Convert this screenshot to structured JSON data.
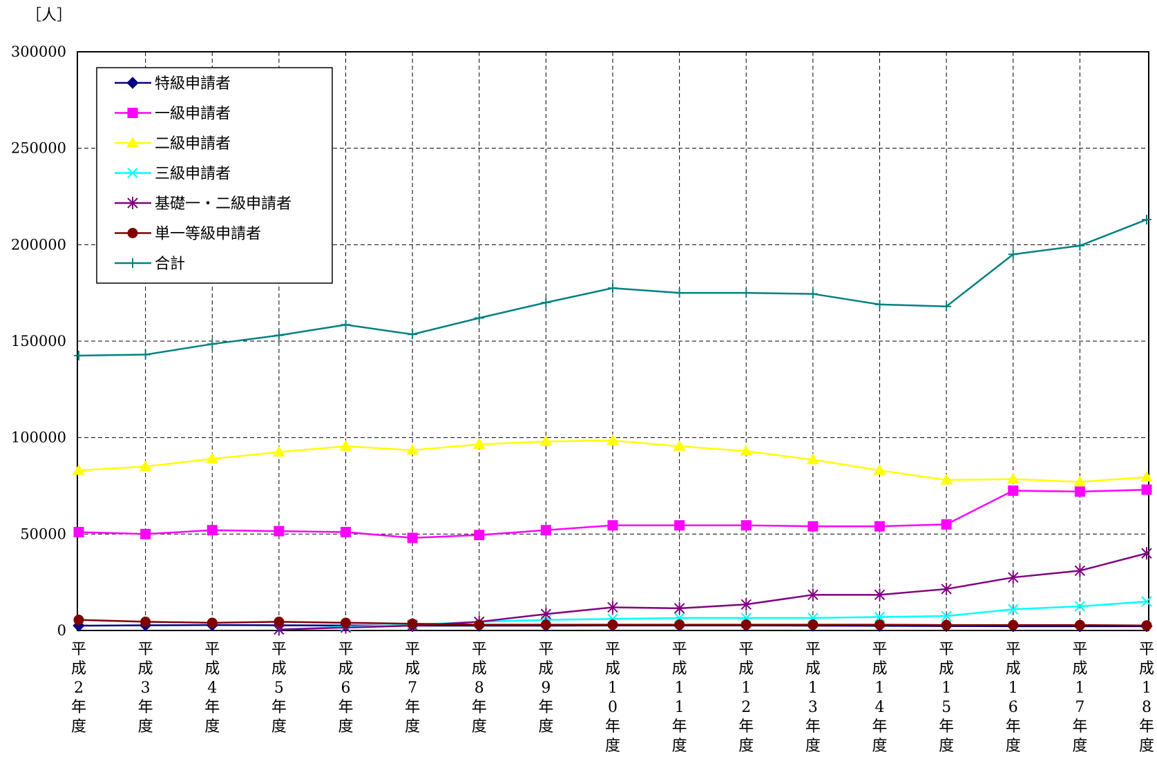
{
  "chart_data": {
    "type": "line",
    "unit_label": "［人］",
    "ylim": [
      0,
      300000
    ],
    "yticks": [
      "300000",
      "250000",
      "200000",
      "150000",
      "100000",
      "50000",
      "0"
    ],
    "ytick_values": [
      300000,
      250000,
      200000,
      150000,
      100000,
      50000,
      0
    ],
    "grid": true,
    "legend_position": "top-left",
    "categories": [
      "平成2年度",
      "平成3年度",
      "平成4年度",
      "平成5年度",
      "平成6年度",
      "平成7年度",
      "平成8年度",
      "平成9年度",
      "平成10年度",
      "平成11年度",
      "平成12年度",
      "平成13年度",
      "平成14年度",
      "平成15年度",
      "平成16年度",
      "平成17年度",
      "平成18年度"
    ],
    "series": [
      {
        "name": "特級申請者",
        "color": "#000080",
        "marker": "diamond",
        "values": [
          2500,
          2700,
          2800,
          2700,
          2600,
          2500,
          2500,
          2500,
          2600,
          2600,
          2600,
          2500,
          2400,
          2300,
          2200,
          2200,
          2200
        ]
      },
      {
        "name": "一級申請者",
        "color": "#FF00FF",
        "marker": "square",
        "values": [
          51000,
          50000,
          52000,
          51500,
          51000,
          48000,
          49500,
          52000,
          54500,
          54500,
          54500,
          54000,
          54000,
          55000,
          72500,
          72000,
          73000
        ]
      },
      {
        "name": "二級申請者",
        "color": "#FFFF00",
        "marker": "triangle",
        "values": [
          83000,
          85000,
          89000,
          92500,
          95500,
          93500,
          96500,
          98000,
          98500,
          95500,
          93000,
          88500,
          83000,
          78000,
          78500,
          77000,
          79500
        ]
      },
      {
        "name": "三級申請者",
        "color": "#00FFFF",
        "marker": "x",
        "values": [
          null,
          null,
          null,
          500,
          2000,
          3000,
          4500,
          5500,
          6000,
          6500,
          6500,
          6500,
          7000,
          7500,
          11000,
          12500,
          15000
        ]
      },
      {
        "name": "基礎一・二級申請者",
        "color": "#800080",
        "marker": "star",
        "values": [
          null,
          null,
          null,
          500,
          1500,
          2500,
          4500,
          8500,
          12000,
          11500,
          13500,
          18500,
          18500,
          21500,
          27500,
          31000,
          40000
        ]
      },
      {
        "name": "単一等級申請者",
        "color": "#800000",
        "marker": "circle",
        "values": [
          5500,
          4500,
          4000,
          4500,
          4000,
          3500,
          3000,
          3000,
          3000,
          3000,
          3000,
          3000,
          3000,
          2800,
          2800,
          2800,
          2600
        ]
      },
      {
        "name": "合計",
        "color": "#008080",
        "marker": "plus",
        "values": [
          142500,
          143000,
          148500,
          153000,
          158500,
          153500,
          162000,
          170000,
          177500,
          175000,
          175000,
          174500,
          169000,
          168000,
          195000,
          199500,
          213000
        ]
      }
    ]
  }
}
